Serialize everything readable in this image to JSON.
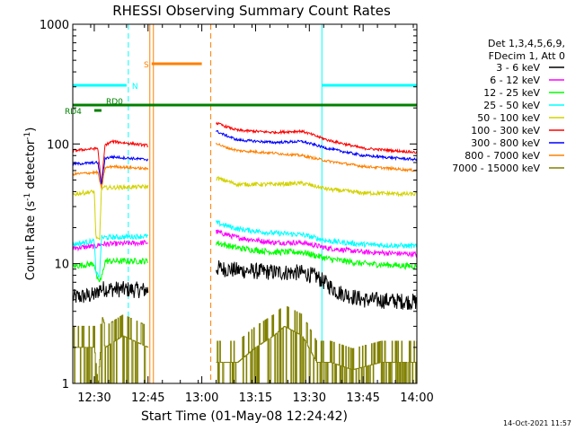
{
  "chart_data": {
    "type": "line",
    "title": "RHESSI Observing Summary Count Rates",
    "xlabel": "Start Time (01-May-08 12:24:42)",
    "ylabel": "Count Rate (s⁻¹ detector⁻¹)",
    "ylabel_main": "Count Rate (s",
    "ylabel_exp1": "-1",
    "ylabel_mid": " detector",
    "ylabel_exp2": "-1",
    "ylabel_end": ")",
    "yscale": "log",
    "ylim": [
      1,
      1000
    ],
    "y_ticks": [
      1,
      10,
      100,
      1000
    ],
    "y_tick_labels": [
      "1",
      "10",
      "100",
      "1000"
    ],
    "xlim": [
      744,
      840
    ],
    "x_ticks": [
      750,
      765,
      780,
      795,
      810,
      825,
      840
    ],
    "x_tick_labels": [
      "12:30",
      "12:45",
      "13:00",
      "13:15",
      "13:30",
      "13:45",
      "14:00"
    ],
    "timestamp": "14-Oct-2021 11:57",
    "legend": {
      "header": [
        "Det 1,3,4,5,6,9,",
        "FDecim 1, Att 0"
      ],
      "entries": [
        {
          "label": "3 - 6 keV",
          "color": "#000000"
        },
        {
          "label": "6 - 12 keV",
          "color": "#ff00ff"
        },
        {
          "label": "12 - 25 keV",
          "color": "#00ff00"
        },
        {
          "label": "25 - 50 keV",
          "color": "#00ffff"
        },
        {
          "label": "50 - 100 keV",
          "color": "#d2d200"
        },
        {
          "label": "100 - 300 keV",
          "color": "#ff0000"
        },
        {
          "label": "300 - 800 keV",
          "color": "#0000ff"
        },
        {
          "label": "800 - 7000 keV",
          "color": "#ff8000"
        },
        {
          "label": "7000 - 15000 keV",
          "color": "#808000"
        }
      ]
    },
    "flags": [
      {
        "label": "N",
        "color": "#00ffff",
        "segments": [
          [
            744,
            759
          ],
          [
            813.5,
            840
          ]
        ],
        "level": 0.83
      },
      {
        "label": "S",
        "color": "#ff8000",
        "segments": [
          [
            766,
            780
          ]
        ],
        "level": 0.89
      },
      {
        "label": "RD0",
        "color": "#008000",
        "segments": [
          [
            744,
            840
          ]
        ],
        "level": 0.775
      },
      {
        "label": "RD4",
        "color": "#008000",
        "segments": [
          [
            750,
            752
          ]
        ],
        "level": 0.76
      }
    ],
    "vlines": [
      {
        "x": 744,
        "color": "#00ffff",
        "style": "solid"
      },
      {
        "x": 759.5,
        "color": "#00ffff",
        "style": "dashed"
      },
      {
        "x": 765.5,
        "color": "#ff8000",
        "style": "solid"
      },
      {
        "x": 766.5,
        "color": "#ff8000",
        "style": "solid"
      },
      {
        "x": 782.5,
        "color": "#ff8000",
        "style": "dashed"
      },
      {
        "x": 813.5,
        "color": "#00ffff",
        "style": "solid"
      },
      {
        "x": 840,
        "color": "#00ffff",
        "style": "dashed"
      }
    ],
    "series": [
      {
        "name": "3 - 6 keV",
        "color": "#000000",
        "noise": 0.16,
        "segments": [
          {
            "x": [
              744,
              750.5,
              751.5,
              765
            ],
            "y": [
              5.2,
              5.5,
              6.2,
              6.0
            ]
          },
          {
            "x": [
              784,
              790,
              800,
              808,
              812,
              818,
              825,
              840
            ],
            "y": [
              9.2,
              8.8,
              8.5,
              8.4,
              7.8,
              5.8,
              5.0,
              4.8
            ]
          }
        ]
      },
      {
        "name": "6 - 12 keV",
        "color": "#ff00ff",
        "noise": 0.05,
        "segments": [
          {
            "x": [
              744,
              750.5,
              751.5,
              765
            ],
            "y": [
              13.5,
              14.0,
              14.5,
              15.0
            ]
          },
          {
            "x": [
              784,
              790,
              800,
              808,
              815,
              825,
              840
            ],
            "y": [
              18.5,
              16.5,
              15.0,
              15.0,
              13.5,
              12.5,
              12.0
            ]
          }
        ]
      },
      {
        "name": "12 - 25 keV",
        "color": "#00ff00",
        "noise": 0.06,
        "segments": [
          {
            "x": [
              744,
              750,
              751,
              752,
              753,
              765
            ],
            "y": [
              9.5,
              10.0,
              7.0,
              7.5,
              10.5,
              10.5
            ]
          },
          {
            "x": [
              784,
              790,
              800,
              808,
              815,
              825,
              840
            ],
            "y": [
              15.0,
              13.5,
              12.5,
              12.5,
              11.0,
              10.0,
              9.5
            ]
          }
        ]
      },
      {
        "name": "25 - 50 keV",
        "color": "#00ffff",
        "noise": 0.05,
        "segments": [
          {
            "x": [
              744,
              750,
              750.5,
              751.5,
              752,
              765
            ],
            "y": [
              14.5,
              15.5,
              8.0,
              8.0,
              16.5,
              17.0
            ]
          },
          {
            "x": [
              784,
              790,
              800,
              808,
              815,
              825,
              840
            ],
            "y": [
              22.0,
              19.5,
              18.0,
              17.5,
              15.5,
              14.5,
              14.0
            ]
          }
        ]
      },
      {
        "name": "50 - 100 keV",
        "color": "#d2d200",
        "noise": 0.04,
        "segments": [
          {
            "x": [
              744,
              750,
              750.5,
              751.5,
              752,
              765
            ],
            "y": [
              38.0,
              40.0,
              16.0,
              16.0,
              43.0,
              44.0
            ]
          },
          {
            "x": [
              784,
              790,
              800,
              808,
              815,
              825,
              840
            ],
            "y": [
              52.0,
              46.0,
              46.0,
              47.0,
              42.0,
              39.0,
              38.0
            ]
          }
        ]
      },
      {
        "name": "100 - 300 keV",
        "color": "#ff0000",
        "noise": 0.025,
        "segments": [
          {
            "x": [
              744,
              751,
              752,
              753,
              755,
              765
            ],
            "y": [
              88.0,
              92.0,
              45.0,
              98.0,
              105.0,
              97.0
            ]
          },
          {
            "x": [
              784,
              786,
              790,
              800,
              808,
              815,
              825,
              840
            ],
            "y": [
              150.0,
              142.0,
              130.0,
              125.0,
              128.0,
              108.0,
              92.0,
              85.0
            ]
          }
        ]
      },
      {
        "name": "300 - 800 keV",
        "color": "#0000ff",
        "noise": 0.025,
        "segments": [
          {
            "x": [
              744,
              751,
              752,
              753,
              755,
              765
            ],
            "y": [
              68.0,
              70.0,
              45.0,
              76.0,
              78.0,
              74.0
            ]
          },
          {
            "x": [
              784,
              786,
              790,
              800,
              808,
              815,
              825,
              840
            ],
            "y": [
              128.0,
              120.0,
              108.0,
              103.0,
              105.0,
              92.0,
              80.0,
              74.0
            ]
          }
        ]
      },
      {
        "name": "800 - 7000 keV",
        "color": "#ff8000",
        "noise": 0.025,
        "segments": [
          {
            "x": [
              744,
              751,
              752,
              753,
              755,
              765
            ],
            "y": [
              56.0,
              58.0,
              42.0,
              63.0,
              65.0,
              62.0
            ]
          },
          {
            "x": [
              784,
              786,
              790,
              800,
              808,
              815,
              825,
              840
            ],
            "y": [
              102.0,
              95.0,
              88.0,
              84.0,
              80.0,
              72.0,
              65.0,
              60.0
            ]
          }
        ]
      },
      {
        "name": "7000 - 15000 keV",
        "color": "#808000",
        "noise": 0.0,
        "segments": [
          {
            "x": [
              744,
              750,
              751,
              752,
              753,
              758,
              765
            ],
            "y": [
              2.0,
              2.0,
              1.0,
              2.5,
              2.0,
              2.5,
              2.0
            ]
          },
          {
            "x": [
              784,
              790,
              795,
              800,
              803,
              808,
              812,
              816,
              822,
              830,
              840
            ],
            "y": [
              1.5,
              1.5,
              2.0,
              2.5,
              3.0,
              2.5,
              1.5,
              1.5,
              1.3,
              1.5,
              1.5
            ]
          }
        ]
      }
    ]
  }
}
